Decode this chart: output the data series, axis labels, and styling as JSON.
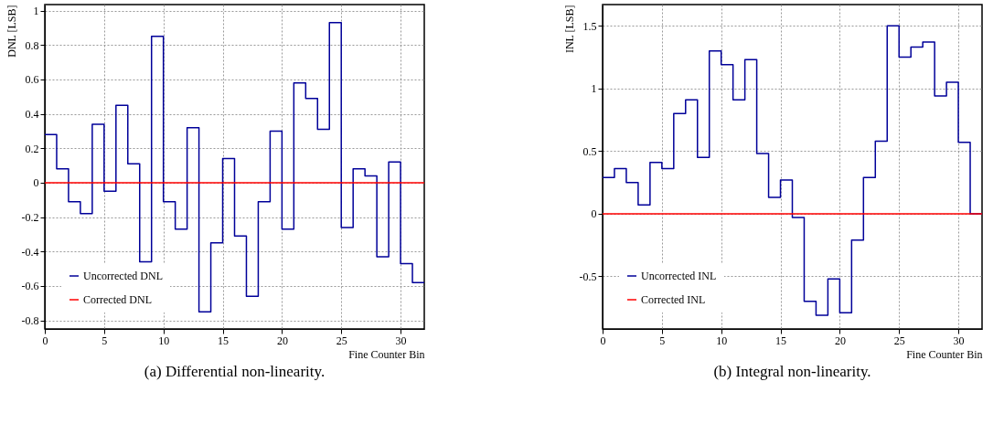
{
  "chart_data": [
    {
      "type": "histogram",
      "title": "(a) Differential non-linearity.",
      "xlabel": "Fine Counter Bin",
      "ylabel": "DNL [LSB]",
      "bins": [
        0,
        1,
        2,
        3,
        4,
        5,
        6,
        7,
        8,
        9,
        10,
        11,
        12,
        13,
        14,
        15,
        16,
        17,
        18,
        19,
        20,
        21,
        22,
        23,
        24,
        25,
        26,
        27,
        28,
        29,
        30,
        31,
        32
      ],
      "series": [
        {
          "name": "Uncorrected DNL",
          "color": "#000099",
          "values": [
            0.28,
            0.08,
            -0.11,
            -0.18,
            0.34,
            -0.05,
            0.45,
            0.11,
            -0.46,
            0.85,
            -0.11,
            -0.27,
            0.32,
            -0.75,
            -0.35,
            0.14,
            -0.31,
            -0.66,
            -0.11,
            0.3,
            -0.27,
            0.58,
            0.49,
            0.31,
            0.93,
            -0.26,
            0.08,
            0.04,
            -0.43,
            0.12,
            -0.47,
            -0.58
          ]
        },
        {
          "name": "Corrected DNL",
          "color": "#ff0000",
          "values": [
            0,
            0,
            0,
            0,
            0,
            0,
            0,
            0,
            0,
            0,
            0,
            0,
            0,
            0,
            0,
            0,
            0,
            0,
            0,
            0,
            0,
            0,
            0,
            0,
            0,
            0,
            0,
            0,
            0,
            0,
            0,
            0
          ]
        }
      ],
      "xlim": [
        0,
        32
      ],
      "ylim": [
        -0.85,
        1.035
      ],
      "xticks": [
        0,
        5,
        10,
        15,
        20,
        25,
        30
      ],
      "yticks": [
        -0.8,
        -0.6,
        -0.4,
        -0.2,
        0,
        0.2,
        0.4,
        0.6,
        0.8,
        1
      ],
      "grid": true,
      "legend": "bottom left"
    },
    {
      "type": "histogram",
      "title": "(b) Integral non-linearity.",
      "xlabel": "Fine Counter Bin",
      "ylabel": "INL [LSB]",
      "bins": [
        0,
        1,
        2,
        3,
        4,
        5,
        6,
        7,
        8,
        9,
        10,
        11,
        12,
        13,
        14,
        15,
        16,
        17,
        18,
        19,
        20,
        21,
        22,
        23,
        24,
        25,
        26,
        27,
        28,
        29,
        30,
        31,
        32
      ],
      "series": [
        {
          "name": "Uncorrected INL",
          "color": "#000099",
          "values": [
            0.29,
            0.36,
            0.25,
            0.07,
            0.41,
            0.36,
            0.8,
            0.91,
            0.45,
            1.3,
            1.19,
            0.91,
            1.23,
            0.48,
            0.13,
            0.27,
            -0.03,
            -0.7,
            -0.81,
            -0.52,
            -0.79,
            -0.21,
            0.29,
            0.58,
            1.5,
            1.25,
            1.33,
            1.37,
            0.94,
            1.05,
            0.57,
            0
          ]
        },
        {
          "name": "Corrected INL",
          "color": "#ff0000",
          "values": [
            0,
            0,
            0,
            0,
            0,
            0,
            0,
            0,
            0,
            0,
            0,
            0,
            0,
            0,
            0,
            0,
            0,
            0,
            0,
            0,
            0,
            0,
            0,
            0,
            0,
            0,
            0,
            0,
            0,
            0,
            0,
            0
          ]
        }
      ],
      "xlim": [
        0,
        32
      ],
      "ylim": [
        -0.92,
        1.67
      ],
      "xticks": [
        0,
        5,
        10,
        15,
        20,
        25,
        30
      ],
      "yticks": [
        -0.5,
        0,
        0.5,
        1,
        1.5
      ],
      "grid": true,
      "legend": "bottom left"
    }
  ]
}
